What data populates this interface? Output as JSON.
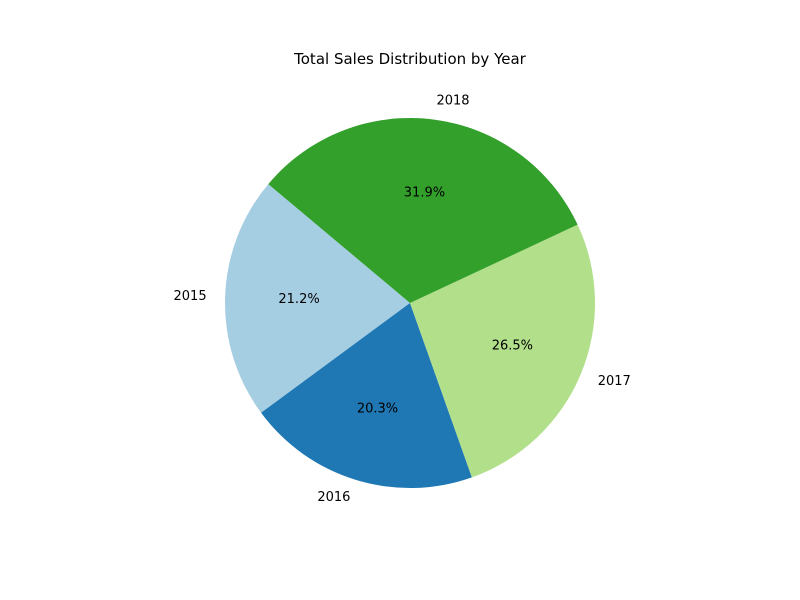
{
  "chart_data": {
    "type": "pie",
    "title": "Total Sales Distribution by Year",
    "categories": [
      "2015",
      "2016",
      "2017",
      "2018"
    ],
    "values": [
      21.2,
      20.3,
      26.5,
      31.9
    ],
    "value_labels": [
      "21.2%",
      "20.3%",
      "26.5%",
      "31.9%"
    ],
    "colors": [
      "#a6cee3",
      "#1f78b4",
      "#b2df8a",
      "#33a02c"
    ],
    "start_angle_deg": 140,
    "direction": "counterclockwise",
    "legend": "none"
  }
}
